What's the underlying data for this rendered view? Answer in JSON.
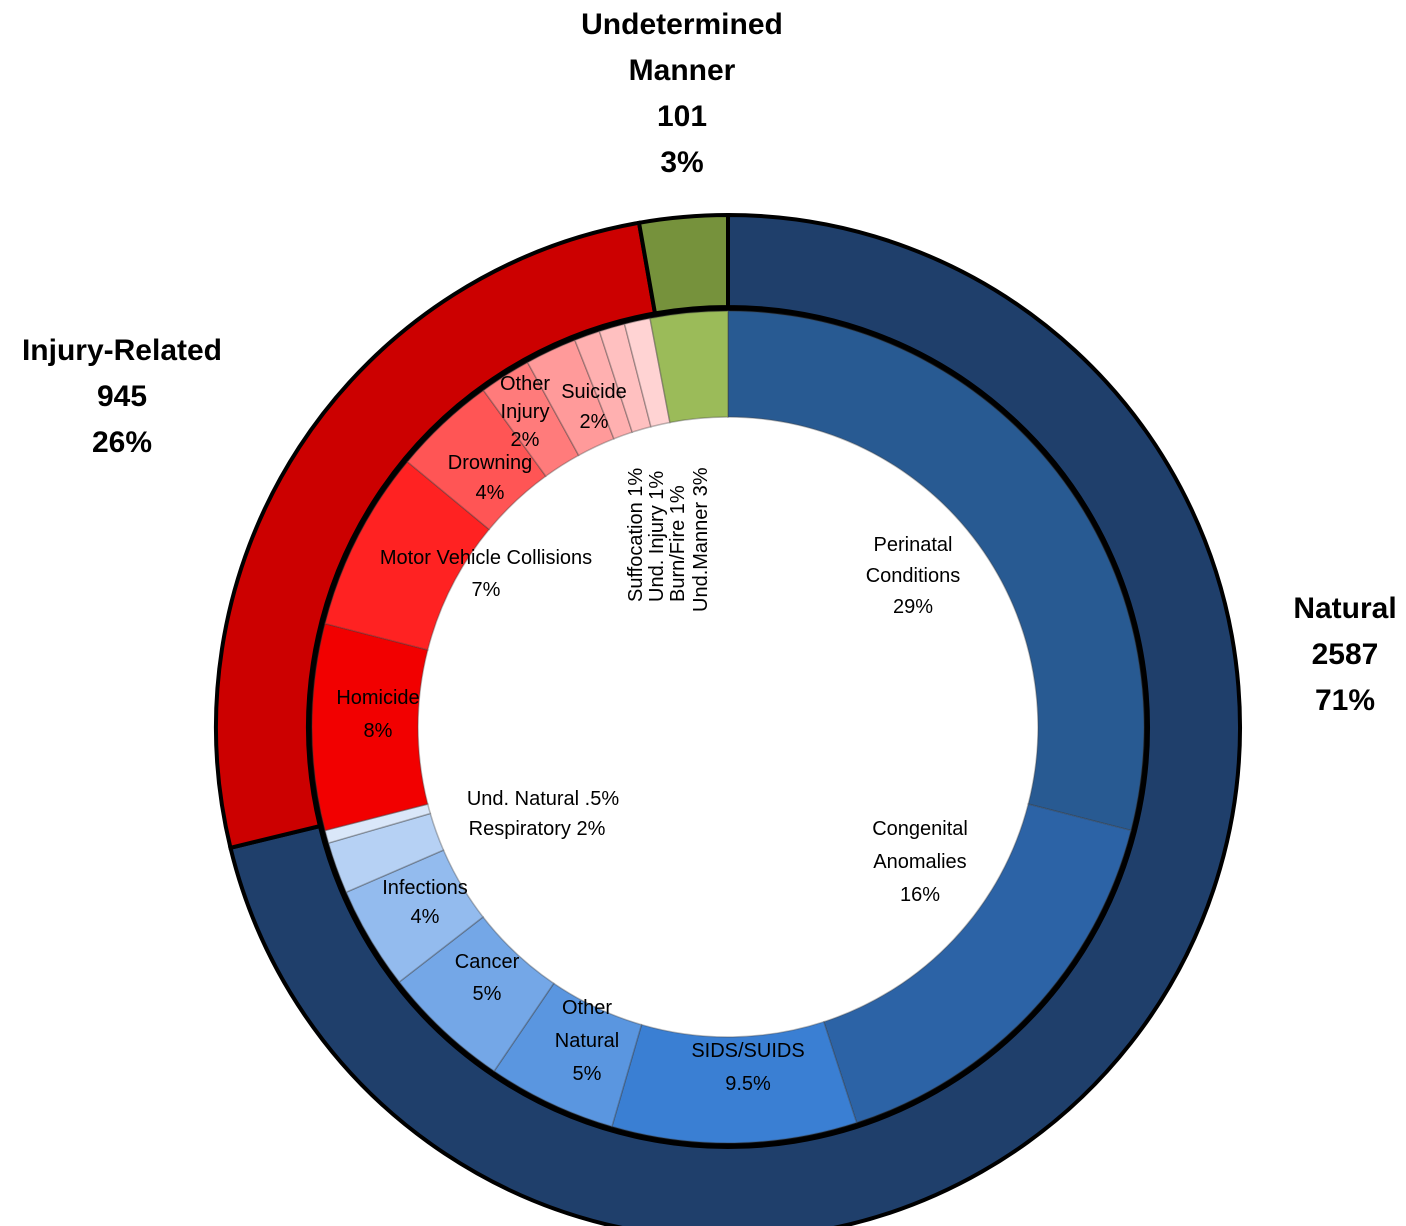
{
  "chart_data": {
    "type": "pie",
    "subtype": "nested donut",
    "outer_ring": [
      {
        "name": "Natural",
        "count": 2587,
        "percent_label": "71%",
        "color": "#1F3F6B"
      },
      {
        "name": "Injury-Related",
        "count": 945,
        "percent_label": "26%",
        "color": "#CC0000"
      },
      {
        "name": "Undetermined Manner",
        "count": 101,
        "percent_label": "3%",
        "color": "#76923C"
      }
    ],
    "inner_ring": [
      {
        "name": "Perinatal Conditions",
        "label_lines": [
          "Perinatal",
          "Conditions",
          "29%"
        ],
        "value": 29,
        "group": "Natural",
        "color": "#285A92"
      },
      {
        "name": "Congenital Anomalies",
        "label_lines": [
          "Congenital",
          "Anomalies",
          "16%"
        ],
        "value": 16,
        "group": "Natural",
        "color": "#2C63A6"
      },
      {
        "name": "SIDS/SUIDS",
        "label_lines": [
          "SIDS/SUIDS",
          "9.5%"
        ],
        "value": 9.5,
        "group": "Natural",
        "color": "#3A7FD3"
      },
      {
        "name": "Other Natural",
        "label_lines": [
          "Other",
          "Natural",
          "5%"
        ],
        "value": 5,
        "group": "Natural",
        "color": "#5A96E0"
      },
      {
        "name": "Cancer",
        "label_lines": [
          "Cancer",
          "5%"
        ],
        "value": 5,
        "group": "Natural",
        "color": "#74A7E7"
      },
      {
        "name": "Infections",
        "label_lines": [
          "Infections",
          "4%"
        ],
        "value": 4,
        "group": "Natural",
        "color": "#93BBEE"
      },
      {
        "name": "Respiratory",
        "label_lines": [
          "Respiratory 2%"
        ],
        "value": 2,
        "group": "Natural",
        "color": "#B6D1F4"
      },
      {
        "name": "Und. Natural",
        "label_lines": [
          "Und. Natural .5%"
        ],
        "value": 0.5,
        "group": "Natural",
        "color": "#DAE7F9"
      },
      {
        "name": "Homicide",
        "label_lines": [
          "Homicide",
          "8%"
        ],
        "value": 8,
        "group": "Injury-Related",
        "color": "#F20000"
      },
      {
        "name": "Motor Vehicle Collisions",
        "label_lines": [
          "Motor Vehicle Collisions",
          "7%"
        ],
        "value": 7,
        "group": "Injury-Related",
        "color": "#FF2222"
      },
      {
        "name": "Drowning",
        "label_lines": [
          "Drowning",
          "4%"
        ],
        "value": 4,
        "group": "Injury-Related",
        "color": "#FF5555"
      },
      {
        "name": "Other Injury",
        "label_lines": [
          "Other",
          "Injury",
          "2%"
        ],
        "value": 2,
        "group": "Injury-Related",
        "color": "#FF7B7B"
      },
      {
        "name": "Suicide",
        "label_lines": [
          "Suicide",
          "2%"
        ],
        "value": 2,
        "group": "Injury-Related",
        "color": "#FF9A9A"
      },
      {
        "name": "Suffocation",
        "label_lines": [
          "Suffocation 1%"
        ],
        "value": 1,
        "group": "Injury-Related",
        "color": "#FFB0B0"
      },
      {
        "name": "Und. Injury",
        "label_lines": [
          "Und. Injury 1%"
        ],
        "value": 1,
        "group": "Injury-Related",
        "color": "#FFC0C0"
      },
      {
        "name": "Burn/Fire",
        "label_lines": [
          "Burn/Fire 1%"
        ],
        "value": 1,
        "group": "Injury-Related",
        "color": "#FFD3D3"
      },
      {
        "name": "Und.Manner",
        "label_lines": [
          "Und.Manner 3%"
        ],
        "value": 3,
        "group": "Undetermined Manner",
        "color": "#9BBB59"
      }
    ]
  }
}
